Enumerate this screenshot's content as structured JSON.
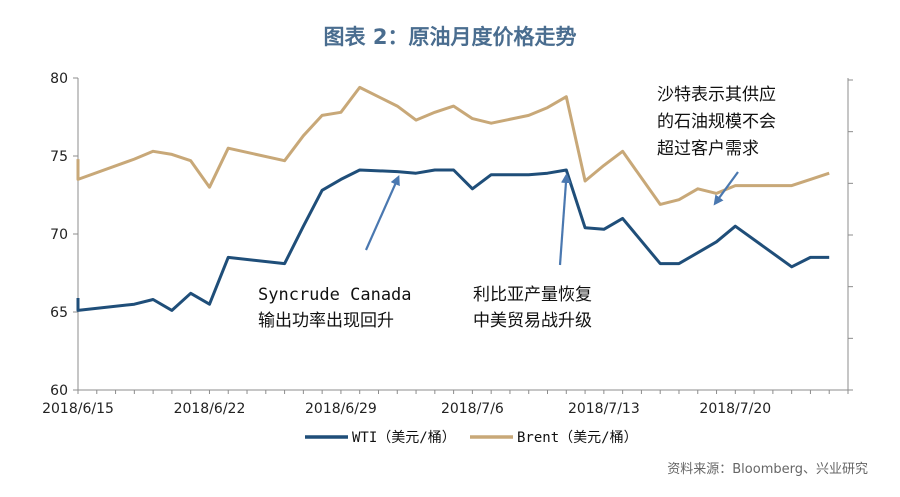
{
  "chart_data": {
    "type": "line",
    "title": "图表 2：原油月度价格走势",
    "ylim": [
      60,
      80
    ],
    "yticks": [
      60,
      65,
      70,
      75,
      80
    ],
    "right_axis": true,
    "grid": false,
    "legend_position": "bottom",
    "x_ticks": [
      "2018/6/15",
      "2018/6/22",
      "2018/6/29",
      "2018/7/6",
      "2018/7/13",
      "2018/7/20"
    ],
    "x_range": [
      "2018/6/15",
      "2018/7/26"
    ],
    "series": [
      {
        "name": "WTI（美元/桶）",
        "color": "#1f4e79",
        "points": [
          [
            "2018/6/15",
            65.9
          ],
          [
            "2018/6/15",
            65.1
          ],
          [
            "2018/6/18",
            65.5
          ],
          [
            "2018/6/19",
            65.8
          ],
          [
            "2018/6/20",
            65.1
          ],
          [
            "2018/6/21",
            66.2
          ],
          [
            "2018/6/22",
            65.5
          ],
          [
            "2018/6/22",
            65.5
          ],
          [
            "2018/6/23",
            68.5
          ],
          [
            "2018/6/26",
            68.1
          ],
          [
            "2018/6/27",
            70.5
          ],
          [
            "2018/6/28",
            72.8
          ],
          [
            "2018/6/29",
            73.5
          ],
          [
            "2018/6/30",
            74.1
          ],
          [
            "2018/7/2",
            74.0
          ],
          [
            "2018/7/3",
            73.9
          ],
          [
            "2018/7/4",
            74.1
          ],
          [
            "2018/7/5",
            74.1
          ],
          [
            "2018/7/6",
            72.9
          ],
          [
            "2018/7/7",
            73.8
          ],
          [
            "2018/7/9",
            73.8
          ],
          [
            "2018/7/10",
            73.9
          ],
          [
            "2018/7/11",
            74.1
          ],
          [
            "2018/7/12",
            70.4
          ],
          [
            "2018/7/13",
            70.3
          ],
          [
            "2018/7/14",
            71.0
          ],
          [
            "2018/7/16",
            68.1
          ],
          [
            "2018/7/17",
            68.1
          ],
          [
            "2018/7/18",
            68.8
          ],
          [
            "2018/7/19",
            69.5
          ],
          [
            "2018/7/20",
            70.5
          ],
          [
            "2018/7/23",
            67.9
          ],
          [
            "2018/7/24",
            68.5
          ],
          [
            "2018/7/25",
            68.5
          ]
        ]
      },
      {
        "name": "Brent（美元/桶）",
        "color": "#c8a878",
        "points": [
          [
            "2018/6/15",
            74.8
          ],
          [
            "2018/6/15",
            73.5
          ],
          [
            "2018/6/18",
            74.8
          ],
          [
            "2018/6/19",
            75.3
          ],
          [
            "2018/6/20",
            75.1
          ],
          [
            "2018/6/21",
            74.7
          ],
          [
            "2018/6/22",
            73.0
          ],
          [
            "2018/6/22",
            73.0
          ],
          [
            "2018/6/23",
            75.5
          ],
          [
            "2018/6/26",
            74.7
          ],
          [
            "2018/6/27",
            76.3
          ],
          [
            "2018/6/28",
            77.6
          ],
          [
            "2018/6/29",
            77.8
          ],
          [
            "2018/6/30",
            79.4
          ],
          [
            "2018/7/2",
            78.2
          ],
          [
            "2018/7/3",
            77.3
          ],
          [
            "2018/7/4",
            77.8
          ],
          [
            "2018/7/5",
            78.2
          ],
          [
            "2018/7/6",
            77.4
          ],
          [
            "2018/7/7",
            77.1
          ],
          [
            "2018/7/9",
            77.6
          ],
          [
            "2018/7/10",
            78.1
          ],
          [
            "2018/7/11",
            78.8
          ],
          [
            "2018/7/12",
            73.4
          ],
          [
            "2018/7/13",
            74.4
          ],
          [
            "2018/7/14",
            75.3
          ],
          [
            "2018/7/16",
            71.9
          ],
          [
            "2018/7/17",
            72.2
          ],
          [
            "2018/7/18",
            72.9
          ],
          [
            "2018/7/19",
            72.6
          ],
          [
            "2018/7/20",
            73.1
          ],
          [
            "2018/7/23",
            73.1
          ],
          [
            "2018/7/24",
            73.5
          ],
          [
            "2018/7/25",
            73.9
          ]
        ]
      }
    ],
    "annotations": [
      {
        "id": "syncrude",
        "lines": [
          "Syncrude Canada",
          "输出功率出现回升"
        ],
        "target": [
          "2018/7/2",
          74.0
        ]
      },
      {
        "id": "libya",
        "lines": [
          "利比亚产量恢复",
          "中美贸易战升级"
        ],
        "target": [
          "2018/7/11",
          74.1
        ]
      },
      {
        "id": "saudi",
        "lines": [
          "沙特表示其供应",
          "的石油规模不会",
          "超过客户需求"
        ],
        "target": [
          "2018/7/19",
          72.6
        ]
      }
    ]
  },
  "source_note": "资料来源：Bloomberg、兴业研究"
}
